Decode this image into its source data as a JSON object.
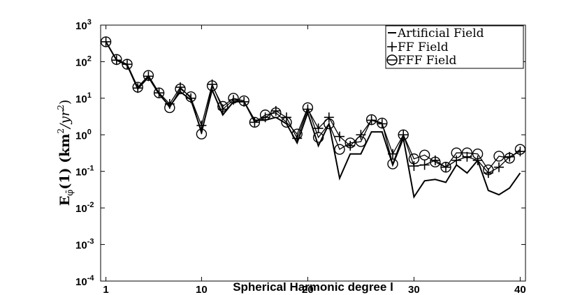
{
  "chart_data": {
    "type": "line",
    "title": "",
    "xlabel": "Spherical Harmonic degree l",
    "ylabel": "E_φ̄(1) (km²/yr²)",
    "ylabel_parts": {
      "main": "E",
      "sub": "φ̄",
      "arg": "(1) (km",
      "sup1": "2",
      "mid": "/yr",
      "sup2": "2",
      "end": ")"
    },
    "xlim": [
      0.5,
      40.5
    ],
    "ylim": [
      0.0001,
      1000
    ],
    "yscale": "log",
    "x_ticks": [
      1,
      10,
      20,
      30,
      40
    ],
    "x_tick_labels": [
      "1",
      "10",
      "20",
      "30",
      "40"
    ],
    "y_tick_exponents": [
      -4,
      -3,
      -2,
      -1,
      0,
      1,
      2,
      3
    ],
    "y_tick_base": "10",
    "grid": false,
    "legend_position": "top-right",
    "x": [
      1,
      2,
      3,
      4,
      5,
      6,
      7,
      8,
      9,
      10,
      11,
      12,
      13,
      14,
      15,
      16,
      17,
      18,
      19,
      20,
      21,
      22,
      23,
      24,
      25,
      26,
      27,
      28,
      29,
      30,
      31,
      32,
      33,
      34,
      35,
      36,
      37,
      38,
      39,
      40
    ],
    "series": [
      {
        "name": "Artificial Field",
        "marker": "none",
        "values": [
          350,
          110,
          80,
          18,
          38,
          13,
          6,
          15,
          9,
          1.2,
          17,
          3.5,
          8,
          8,
          2.5,
          2.5,
          3,
          2,
          0.6,
          4,
          0.5,
          2,
          0.065,
          0.3,
          0.3,
          1.2,
          1.2,
          0.15,
          0.8,
          0.02,
          0.055,
          0.06,
          0.05,
          0.15,
          0.09,
          0.2,
          0.03,
          0.023,
          0.035,
          0.09
        ]
      },
      {
        "name": "FF Field",
        "marker": "+",
        "values": [
          350,
          110,
          85,
          19,
          40,
          14,
          7,
          20,
          10,
          1.8,
          24,
          5,
          9,
          8,
          2.2,
          3,
          4.5,
          3,
          0.8,
          5,
          1.5,
          3,
          0.9,
          0.5,
          1,
          2.5,
          2,
          0.3,
          1,
          0.14,
          0.15,
          0.2,
          0.13,
          0.2,
          0.25,
          0.2,
          0.09,
          0.13,
          0.25,
          0.35
        ]
      },
      {
        "name": "FFF Field",
        "marker": "circle",
        "values": [
          350,
          115,
          85,
          20,
          42,
          14,
          5.5,
          18,
          11,
          1.05,
          22,
          6,
          10,
          8.5,
          2.2,
          3.5,
          4,
          2.2,
          1.05,
          5.5,
          0.85,
          2,
          0.4,
          0.6,
          0.65,
          2.6,
          2.1,
          0.16,
          1,
          0.22,
          0.28,
          0.18,
          0.13,
          0.32,
          0.32,
          0.3,
          0.11,
          0.26,
          0.23,
          0.4
        ]
      }
    ]
  }
}
